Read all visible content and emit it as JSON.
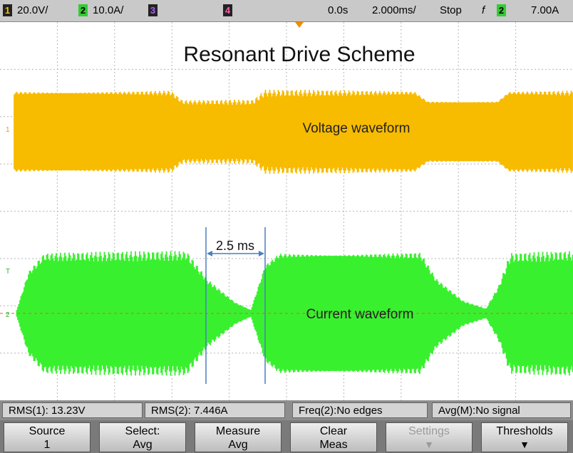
{
  "top_bar": {
    "ch1_label": "1",
    "ch1_scale": "20.0V/",
    "ch2_label": "2",
    "ch2_scale": "10.0A/",
    "ch3_label": "3",
    "ch4_label": "4",
    "delay": "0.0s",
    "timebase": "2.000ms/",
    "run_state": "Stop",
    "trigger_slope": "f",
    "trigger_source": "2",
    "trigger_level": "7.00A"
  },
  "screen": {
    "title": "Resonant Drive Scheme",
    "annotations": [
      "Voltage waveform",
      "Current waveform",
      "2.5 ms"
    ],
    "markers": [
      "1",
      "T",
      "2"
    ]
  },
  "measurements": [
    "RMS(1): 13.23V",
    "RMS(2): 7.446A",
    "Freq(2):No edges",
    "Avg(M):No signal"
  ],
  "softkeys": [
    {
      "label": "Source",
      "value": "1"
    },
    {
      "label": "Select:",
      "value": "Avg"
    },
    {
      "label": "Measure",
      "value": "Avg"
    },
    {
      "label": "Clear",
      "value": "Meas"
    },
    {
      "label": "Settings"
    },
    {
      "label": "Thresholds"
    }
  ]
}
